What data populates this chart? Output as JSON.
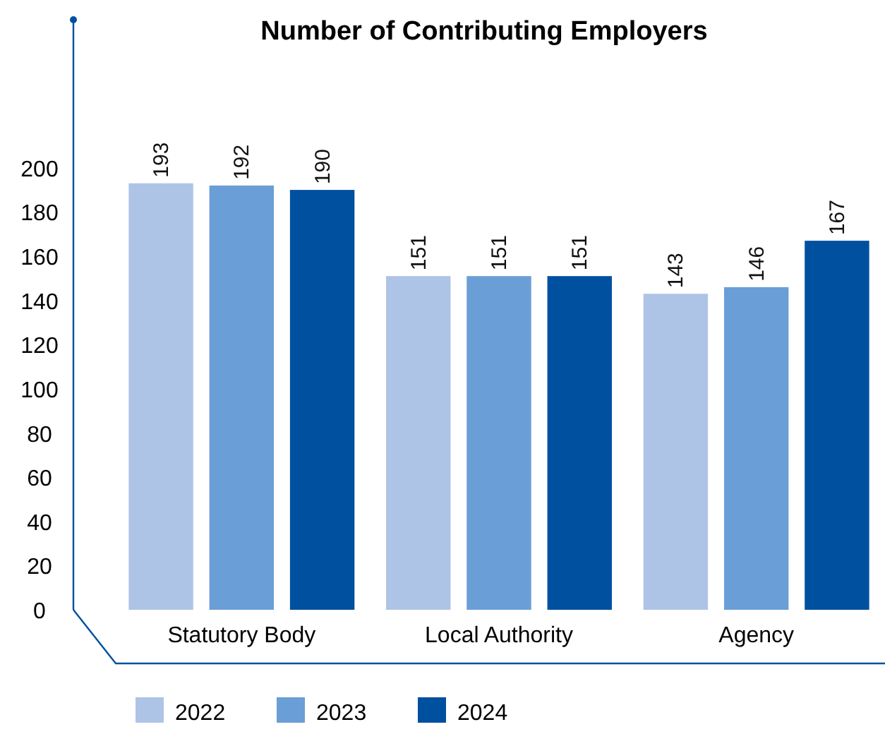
{
  "chart_data": {
    "type": "bar",
    "title": "Number of Contributing Employers",
    "categories": [
      "Statutory Body",
      "Local Authority",
      "Agency"
    ],
    "series": [
      {
        "name": "2022",
        "color": "#aec4e6",
        "values": [
          193,
          151,
          143
        ]
      },
      {
        "name": "2023",
        "color": "#6a9ed6",
        "values": [
          192,
          151,
          146
        ]
      },
      {
        "name": "2024",
        "color": "#0050a0",
        "values": [
          190,
          151,
          167
        ]
      }
    ],
    "ylim": [
      0,
      267
    ],
    "yticks": [
      0,
      20,
      40,
      60,
      80,
      100,
      120,
      140,
      160,
      180,
      200
    ],
    "data_labels": true,
    "legend": "bottom",
    "grid": false
  }
}
